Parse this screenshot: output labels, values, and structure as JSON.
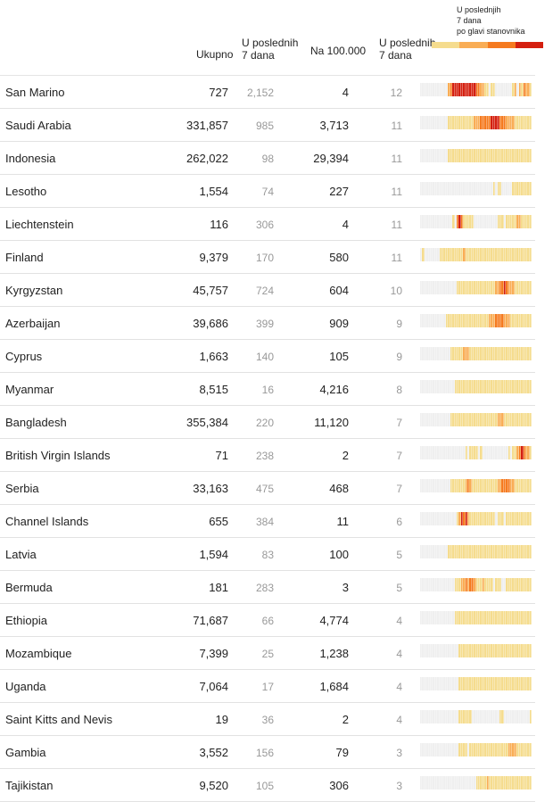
{
  "header": {
    "col_total": "Ukupno",
    "col_7d_line1": "U poslednih",
    "col_7d_line2": "7 dana",
    "col_per100": "Na 100.000",
    "col_per7_line1": "U poslednih",
    "col_per7_line2": "7 dana",
    "legend_line1": "U poslednjih",
    "legend_line2": "7 dana",
    "legend_line3": "po glavi stanovnika"
  },
  "colors": {
    "level0": "#efefef",
    "level1": "#f5dc8e",
    "level2": "#f9ad55",
    "level3": "#f57a1f",
    "level4": "#d41f0f"
  },
  "chart_data": {
    "type": "table",
    "columns": [
      "",
      "Ukupno",
      "U poslednih 7 dana",
      "Na 100.000",
      "U poslednih 7 dana",
      "U poslednjih 7 dana po glavi stanovnika"
    ],
    "rows": [
      {
        "name": "San Marino",
        "total": "727",
        "last7": "2,152",
        "per100k": "4",
        "per7": "12",
        "heat": "0000000000000234444444444433221101100000000120213221"
      },
      {
        "name": "Saudi Arabia",
        "total": "331,857",
        "last7": "985",
        "per100k": "3,713",
        "per7": "11",
        "heat": "0000000000000111111111111222333334444333222211111111"
      },
      {
        "name": "Indonesia",
        "total": "262,022",
        "last7": "98",
        "per100k": "29,394",
        "per7": "11",
        "heat": "0000000000000111111111111111111111111111111111111111"
      },
      {
        "name": "Lesotho",
        "total": "1,554",
        "last7": "74",
        "per100k": "227",
        "per7": "11",
        "heat": "0000000000000000000000000000000000101100000111111111"
      },
      {
        "name": "Liechtenstein",
        "total": "116",
        "last7": "306",
        "per100k": "4",
        "per7": "11",
        "heat": "0000000000000001034311111000000000001110111112211111"
      },
      {
        "name": "Finland",
        "total": "9,379",
        "last7": "170",
        "per100k": "580",
        "per7": "11",
        "heat": "0100000001111111111121111111111111111111111111111111"
      },
      {
        "name": "Kyrgyzstan",
        "total": "45,757",
        "last7": "724",
        "per100k": "604",
        "per7": "10",
        "heat": "0000000000000000011111111111111111122334322211111111"
      },
      {
        "name": "Azerbaijan",
        "total": "39,686",
        "last7": "399",
        "per100k": "909",
        "per7": "9",
        "heat": "0000000000001111111111111111111122233332221111111111"
      },
      {
        "name": "Cyprus",
        "total": "1,663",
        "last7": "140",
        "per100k": "105",
        "per7": "9",
        "heat": "0000000000000011111122211111111111111111111111111111"
      },
      {
        "name": "Myanmar",
        "total": "8,515",
        "last7": "16",
        "per100k": "4,216",
        "per7": "8",
        "heat": "0000000000000000111111111111111111111111111111111111"
      },
      {
        "name": "Bangladesh",
        "total": "355,384",
        "last7": "220",
        "per100k": "11,120",
        "per7": "7",
        "heat": "0000000000000011111111111111111111112221111111111111"
      },
      {
        "name": "British Virgin Islands",
        "total": "71",
        "last7": "238",
        "per100k": "2",
        "per7": "7",
        "heat": "0000000000000000000001011110100000000000010112343221"
      },
      {
        "name": "Serbia",
        "total": "33,163",
        "last7": "475",
        "per100k": "468",
        "per7": "7",
        "heat": "0000000000000011111112321111111111112233332211111111"
      },
      {
        "name": "Channel Islands",
        "total": "655",
        "last7": "384",
        "per100k": "11",
        "per7": "6",
        "heat": "0000000000000000012434211111111111101110111111111111"
      },
      {
        "name": "Latvia",
        "total": "1,594",
        "last7": "83",
        "per100k": "100",
        "per7": "5",
        "heat": "0000000000000111111111111111111111111111111111111111"
      },
      {
        "name": "Bermuda",
        "total": "181",
        "last7": "283",
        "per100k": "3",
        "per7": "5",
        "heat": "0000000000000000111223233211121111011100111111111111"
      },
      {
        "name": "Ethiopia",
        "total": "71,687",
        "last7": "66",
        "per100k": "4,774",
        "per7": "4",
        "heat": "0000000000000000111111111111111111111111111111111111"
      },
      {
        "name": "Mozambique",
        "total": "7,399",
        "last7": "25",
        "per100k": "1,238",
        "per7": "4",
        "heat": "0000000000000000001111111111111111111111111111111111"
      },
      {
        "name": "Uganda",
        "total": "7,064",
        "last7": "17",
        "per100k": "1,684",
        "per7": "4",
        "heat": "0000000000000000001111111111111111111111111111111111"
      },
      {
        "name": "Saint Kitts and Nevis",
        "total": "19",
        "last7": "36",
        "per100k": "2",
        "per7": "4",
        "heat": "0000000000000000001111110000000000000110000000000001"
      },
      {
        "name": "Gambia",
        "total": "3,552",
        "last7": "156",
        "per100k": "79",
        "per7": "3",
        "heat": "0000000000000000001111011111111111111111122221111111"
      },
      {
        "name": "Tajikistan",
        "total": "9,520",
        "last7": "105",
        "per100k": "306",
        "per7": "3",
        "heat": "0000000000000000000000000011111211111111111111111111"
      }
    ]
  }
}
